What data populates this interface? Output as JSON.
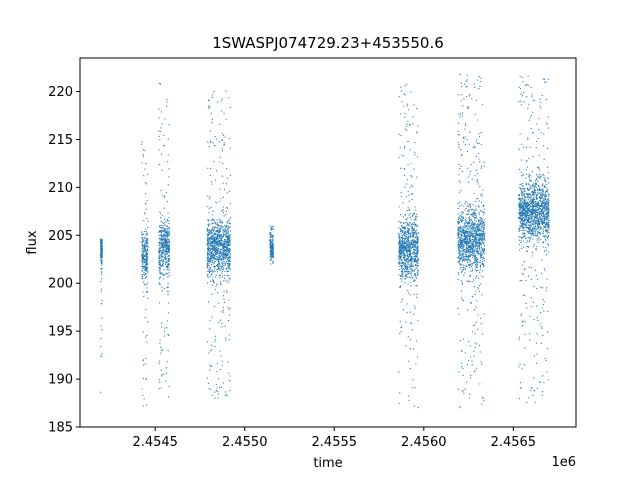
{
  "chart_data": {
    "type": "scatter",
    "title": "1SWASPJ074729.23+453550.6",
    "xlabel": "time",
    "ylabel": "flux",
    "offset_label": "1e6",
    "xlim": [
      2454080,
      2456850
    ],
    "ylim": [
      185,
      223.5
    ],
    "x_ticks": [
      {
        "value": 2454500,
        "label": "2.4545"
      },
      {
        "value": 2455000,
        "label": "2.4550"
      },
      {
        "value": 2455500,
        "label": "2.4555"
      },
      {
        "value": 2456000,
        "label": "2.4560"
      },
      {
        "value": 2456500,
        "label": "2.4565"
      }
    ],
    "y_ticks": [
      {
        "value": 185,
        "label": "185"
      },
      {
        "value": 190,
        "label": "190"
      },
      {
        "value": 195,
        "label": "195"
      },
      {
        "value": 200,
        "label": "200"
      },
      {
        "value": 205,
        "label": "205"
      },
      {
        "value": 210,
        "label": "210"
      },
      {
        "value": 215,
        "label": "215"
      },
      {
        "value": 220,
        "label": "220"
      }
    ],
    "grid": false,
    "legend": "none",
    "marker": "point",
    "series_color": "#1f77b4",
    "observing_seasons": [
      {
        "t_start": 2454195,
        "t_end": 2454205,
        "flux_center": 203.5,
        "flux_min": 187.2,
        "flux_max": 204.6
      },
      {
        "t_start": 2454425,
        "t_end": 2454460,
        "flux_center": 202.8,
        "flux_min": 187.0,
        "flux_max": 214.8
      },
      {
        "t_start": 2454520,
        "t_end": 2454580,
        "flux_center": 203.8,
        "flux_min": 188.0,
        "flux_max": 221.2
      },
      {
        "t_start": 2454790,
        "t_end": 2454920,
        "flux_center": 203.8,
        "flux_min": 187.5,
        "flux_max": 220.5
      },
      {
        "t_start": 2455140,
        "t_end": 2455160,
        "flux_center": 203.8,
        "flux_min": 202.0,
        "flux_max": 206.0
      },
      {
        "t_start": 2455860,
        "t_end": 2455970,
        "flux_center": 203.5,
        "flux_min": 187.0,
        "flux_max": 220.8
      },
      {
        "t_start": 2456190,
        "t_end": 2456340,
        "flux_center": 204.5,
        "flux_min": 187.0,
        "flux_max": 221.8
      },
      {
        "t_start": 2456530,
        "t_end": 2456700,
        "flux_center": 207.5,
        "flux_min": 187.5,
        "flux_max": 221.8
      }
    ]
  }
}
